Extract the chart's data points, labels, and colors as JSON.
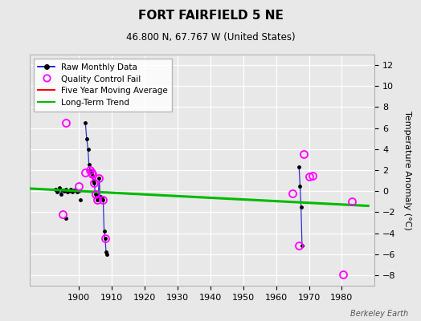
{
  "title": "FORT FAIRFIELD 5 NE",
  "subtitle": "46.800 N, 67.767 W (United States)",
  "ylabel_right": "Temperature Anomaly (°C)",
  "watermark": "Berkeley Earth",
  "xlim": [
    1885,
    1990
  ],
  "ylim": [
    -9,
    13
  ],
  "yticks": [
    -8,
    -6,
    -4,
    -2,
    0,
    2,
    4,
    6,
    8,
    10,
    12
  ],
  "xticks": [
    1900,
    1910,
    1920,
    1930,
    1940,
    1950,
    1960,
    1970,
    1980
  ],
  "bg_color": "#e8e8e8",
  "plot_bg_color": "#e8e8e8",
  "grid_color": "#ffffff",
  "raw_color": "#0000cc",
  "qc_color": "#ff00ff",
  "ma_color": "#ff0000",
  "trend_color": "#00bb00",
  "trend_x": [
    1885,
    1988
  ],
  "trend_y": [
    0.25,
    -1.4
  ],
  "raw_segments": [
    {
      "x": [
        1893.0,
        1893.5,
        1894.0,
        1894.5,
        1895.0,
        1895.5,
        1896.0,
        1896.5,
        1897.0,
        1897.5,
        1898.0,
        1898.5,
        1899.0,
        1899.5,
        1900.0
      ],
      "y": [
        0.2,
        -0.1,
        0.3,
        -0.3,
        0.1,
        0.0,
        0.2,
        -0.1,
        0.0,
        0.15,
        -0.05,
        0.1,
        0.1,
        -0.1,
        0.0
      ]
    },
    {
      "x": [
        1902.0,
        1902.4,
        1902.8,
        1903.1,
        1903.5,
        1903.8,
        1904.1,
        1904.4,
        1904.7,
        1905.0,
        1905.3,
        1905.6,
        1905.9,
        1906.2,
        1906.5,
        1906.8,
        1907.1,
        1907.4,
        1907.7,
        1908.0,
        1908.3
      ],
      "y": [
        6.5,
        5.0,
        4.0,
        2.5,
        2.0,
        1.8,
        1.5,
        1.0,
        0.8,
        -0.3,
        -0.5,
        -0.8,
        -0.6,
        1.2,
        -0.5,
        -0.6,
        -0.7,
        -0.8,
        -3.8,
        -4.5,
        -5.8
      ]
    },
    {
      "x": [
        1967.0,
        1967.3,
        1967.6,
        1967.9
      ],
      "y": [
        2.3,
        0.5,
        -1.5,
        -5.2
      ]
    }
  ],
  "isolated_raw": [
    [
      1893.0,
      0.2
    ],
    [
      1896.0,
      -2.6
    ],
    [
      1900.5,
      -0.8
    ],
    [
      1908.5,
      -6.0
    ]
  ],
  "qc_fail_points": [
    [
      1896.0,
      6.5
    ],
    [
      1895.0,
      -2.2
    ],
    [
      1900.0,
      0.5
    ],
    [
      1902.0,
      1.8
    ],
    [
      1903.5,
      2.0
    ],
    [
      1903.8,
      1.8
    ],
    [
      1904.1,
      1.6
    ],
    [
      1904.7,
      0.8
    ],
    [
      1905.0,
      -0.3
    ],
    [
      1905.6,
      -0.8
    ],
    [
      1906.2,
      1.2
    ],
    [
      1907.4,
      -0.8
    ],
    [
      1908.0,
      -4.5
    ],
    [
      1965.0,
      -0.2
    ],
    [
      1967.0,
      -5.2
    ],
    [
      1968.5,
      3.5
    ],
    [
      1970.0,
      1.4
    ],
    [
      1971.0,
      1.5
    ],
    [
      1980.5,
      -7.9
    ],
    [
      1983.0,
      -1.0
    ]
  ]
}
